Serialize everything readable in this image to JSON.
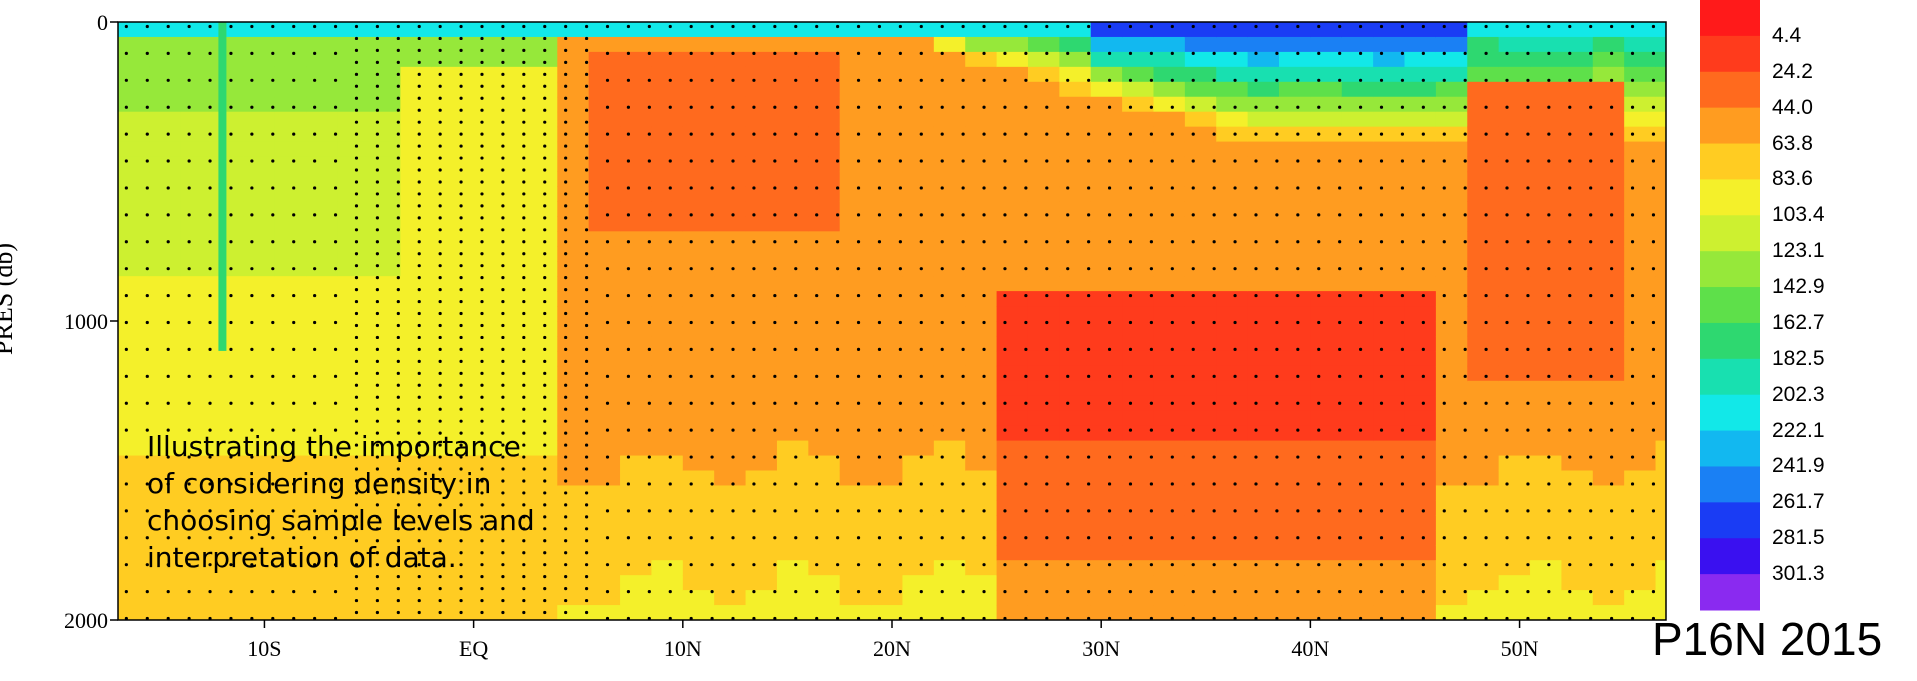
{
  "chart_data": {
    "type": "heatmap",
    "title": "",
    "xlabel": "",
    "ylabel": "PRES (db)",
    "ylim": [
      2000,
      0
    ],
    "y_ticks": [
      "0",
      "1000",
      "2000"
    ],
    "x_ticks": [
      "10S",
      "EQ",
      "10N",
      "20N",
      "30N",
      "40N",
      "50N"
    ],
    "x_tick_lat": [
      -10,
      0,
      10,
      20,
      30,
      40,
      50
    ],
    "xlim": [
      -17,
      57
    ],
    "colorbar": {
      "labels": [
        "4.4",
        "24.2",
        "44.0",
        "63.8",
        "83.6",
        "103.4",
        "123.1",
        "142.9",
        "162.7",
        "182.5",
        "202.3",
        "222.1",
        "241.9",
        "261.7",
        "281.5",
        "301.3"
      ],
      "colors": [
        "#ff1a1a",
        "#ff3b1c",
        "#ff6a1e",
        "#ff9c20",
        "#ffcc22",
        "#f4f02a",
        "#cdf030",
        "#96e83a",
        "#5ee04a",
        "#2ed870",
        "#18e0b0",
        "#12e8e8",
        "#12b8f0",
        "#1a80f4",
        "#1a3cf4",
        "#3a10f0",
        "#8a2af0"
      ]
    },
    "annotation": "Illustrating the importance\nof considering density in\nchoosing sample levels and\ninterpretation of data.",
    "section_label": "P16N 2015"
  }
}
